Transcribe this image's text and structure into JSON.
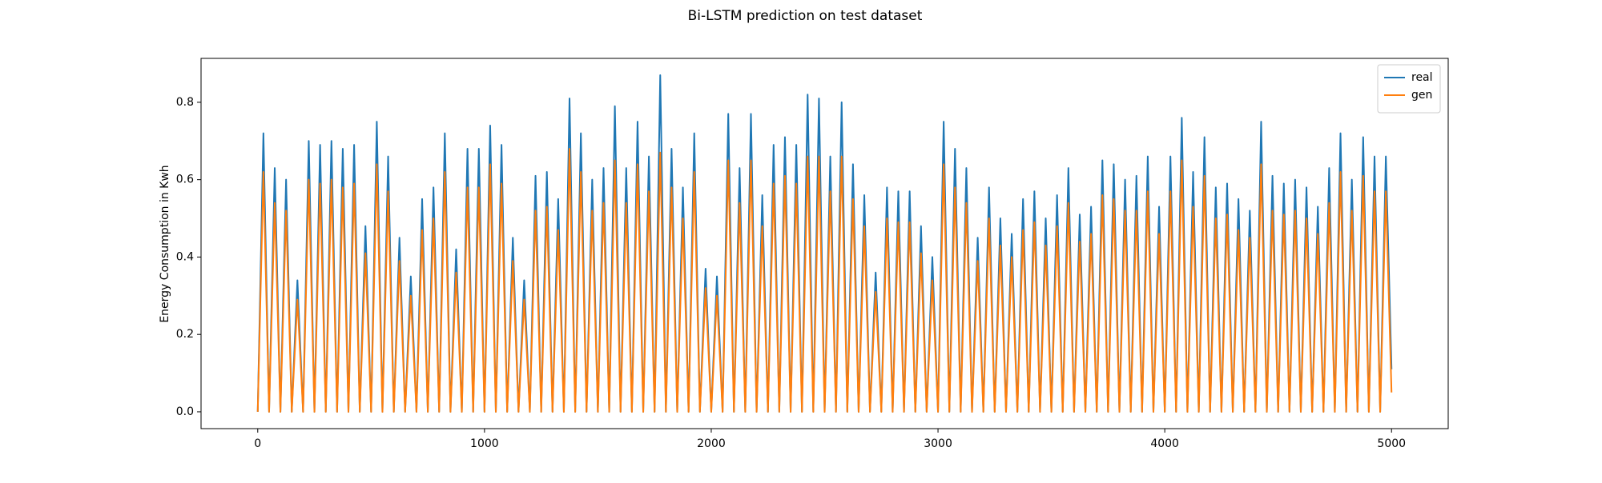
{
  "chart_data": {
    "type": "line",
    "title": "Bi-LSTM prediction on test dataset",
    "y_label": "Energy Consumption in Kwh",
    "x": [
      0,
      25,
      50,
      75,
      100,
      125,
      150,
      175,
      200,
      225,
      250,
      275,
      300,
      325,
      350,
      375,
      400,
      425,
      450,
      475,
      500,
      525,
      550,
      575,
      600,
      625,
      650,
      675,
      700,
      725,
      750,
      775,
      800,
      825,
      850,
      875,
      900,
      925,
      950,
      975,
      1000,
      1025,
      1050,
      1075,
      1100,
      1125,
      1150,
      1175,
      1200,
      1225,
      1250,
      1275,
      1300,
      1325,
      1350,
      1375,
      1400,
      1425,
      1450,
      1475,
      1500,
      1525,
      1550,
      1575,
      1600,
      1625,
      1650,
      1675,
      1700,
      1725,
      1750,
      1775,
      1800,
      1825,
      1850,
      1875,
      1900,
      1925,
      1950,
      1975,
      2000,
      2025,
      2050,
      2075,
      2100,
      2125,
      2150,
      2175,
      2200,
      2225,
      2250,
      2275,
      2300,
      2325,
      2350,
      2375,
      2400,
      2425,
      2450,
      2475,
      2500,
      2525,
      2550,
      2575,
      2600,
      2625,
      2650,
      2675,
      2700,
      2725,
      2750,
      2775,
      2800,
      2825,
      2850,
      2875,
      2900,
      2925,
      2950,
      2975,
      3000,
      3025,
      3050,
      3075,
      3100,
      3125,
      3150,
      3175,
      3200,
      3225,
      3250,
      3275,
      3300,
      3325,
      3350,
      3375,
      3400,
      3425,
      3450,
      3475,
      3500,
      3525,
      3550,
      3575,
      3600,
      3625,
      3650,
      3675,
      3700,
      3725,
      3750,
      3775,
      3800,
      3825,
      3850,
      3875,
      3900,
      3925,
      3950,
      3975,
      4000,
      4025,
      4050,
      4075,
      4100,
      4125,
      4150,
      4175,
      4200,
      4225,
      4250,
      4275,
      4300,
      4325,
      4350,
      4375,
      4400,
      4425,
      4450,
      4475,
      4500,
      4525,
      4550,
      4575,
      4600,
      4625,
      4650,
      4675,
      4700,
      4725,
      4750,
      4775,
      4800,
      4825,
      4850,
      4875,
      4900,
      4925,
      4950,
      4975,
      5000
    ],
    "series": [
      {
        "name": "real",
        "color": "#1f77b4",
        "values": [
          0,
          0.72,
          0,
          0.63,
          0,
          0.6,
          0,
          0.34,
          0,
          0.7,
          0,
          0.69,
          0,
          0.7,
          0,
          0.68,
          0,
          0.69,
          0,
          0.48,
          0,
          0.75,
          0,
          0.66,
          0,
          0.45,
          0,
          0.35,
          0,
          0.55,
          0,
          0.58,
          0,
          0.72,
          0,
          0.42,
          0,
          0.68,
          0,
          0.68,
          0,
          0.74,
          0,
          0.69,
          0,
          0.45,
          0,
          0.34,
          0,
          0.61,
          0,
          0.62,
          0,
          0.55,
          0,
          0.81,
          0,
          0.72,
          0,
          0.6,
          0,
          0.63,
          0,
          0.79,
          0,
          0.63,
          0,
          0.75,
          0,
          0.66,
          0,
          0.87,
          0,
          0.68,
          0,
          0.58,
          0,
          0.72,
          0,
          0.37,
          0,
          0.35,
          0,
          0.77,
          0,
          0.63,
          0,
          0.77,
          0,
          0.56,
          0,
          0.69,
          0,
          0.71,
          0,
          0.69,
          0,
          0.82,
          0,
          0.81,
          0,
          0.66,
          0,
          0.8,
          0,
          0.64,
          0,
          0.56,
          0,
          0.36,
          0,
          0.58,
          0,
          0.57,
          0,
          0.57,
          0,
          0.48,
          0,
          0.4,
          0,
          0.75,
          0,
          0.68,
          0,
          0.63,
          0,
          0.45,
          0,
          0.58,
          0,
          0.5,
          0,
          0.46,
          0,
          0.55,
          0,
          0.57,
          0,
          0.5,
          0,
          0.56,
          0,
          0.63,
          0,
          0.51,
          0,
          0.53,
          0,
          0.65,
          0,
          0.64,
          0,
          0.6,
          0,
          0.61,
          0,
          0.66,
          0,
          0.53,
          0,
          0.66,
          0,
          0.76,
          0,
          0.62,
          0,
          0.71,
          0,
          0.58,
          0,
          0.59,
          0,
          0.55,
          0,
          0.52,
          0,
          0.75,
          0,
          0.61,
          0,
          0.59,
          0,
          0.6,
          0,
          0.58,
          0,
          0.53,
          0,
          0.63,
          0,
          0.72,
          0,
          0.6,
          0,
          0.71,
          0,
          0.66,
          0,
          0.66,
          0.11
        ]
      },
      {
        "name": "gen",
        "color": "#ff7f0e",
        "values": [
          0,
          0.62,
          0,
          0.54,
          0,
          0.52,
          0,
          0.29,
          0,
          0.6,
          0,
          0.59,
          0,
          0.6,
          0,
          0.58,
          0,
          0.59,
          0,
          0.41,
          0,
          0.64,
          0,
          0.57,
          0,
          0.39,
          0,
          0.3,
          0,
          0.47,
          0,
          0.5,
          0,
          0.62,
          0,
          0.36,
          0,
          0.58,
          0,
          0.58,
          0,
          0.64,
          0,
          0.59,
          0,
          0.39,
          0,
          0.29,
          0,
          0.52,
          0,
          0.53,
          0,
          0.47,
          0,
          0.68,
          0,
          0.62,
          0,
          0.52,
          0,
          0.54,
          0,
          0.65,
          0,
          0.54,
          0,
          0.64,
          0,
          0.57,
          0,
          0.67,
          0,
          0.58,
          0,
          0.5,
          0,
          0.62,
          0,
          0.32,
          0,
          0.3,
          0,
          0.65,
          0,
          0.54,
          0,
          0.65,
          0,
          0.48,
          0,
          0.59,
          0,
          0.61,
          0,
          0.59,
          0,
          0.66,
          0,
          0.66,
          0,
          0.57,
          0,
          0.66,
          0,
          0.55,
          0,
          0.48,
          0,
          0.31,
          0,
          0.5,
          0,
          0.49,
          0,
          0.49,
          0,
          0.41,
          0,
          0.34,
          0,
          0.64,
          0,
          0.58,
          0,
          0.54,
          0,
          0.39,
          0,
          0.5,
          0,
          0.43,
          0,
          0.4,
          0,
          0.47,
          0,
          0.49,
          0,
          0.43,
          0,
          0.48,
          0,
          0.54,
          0,
          0.44,
          0,
          0.46,
          0,
          0.56,
          0,
          0.55,
          0,
          0.52,
          0,
          0.52,
          0,
          0.57,
          0,
          0.46,
          0,
          0.57,
          0,
          0.65,
          0,
          0.53,
          0,
          0.61,
          0,
          0.5,
          0,
          0.51,
          0,
          0.47,
          0,
          0.45,
          0,
          0.64,
          0,
          0.52,
          0,
          0.51,
          0,
          0.52,
          0,
          0.5,
          0,
          0.46,
          0,
          0.54,
          0,
          0.62,
          0,
          0.52,
          0,
          0.61,
          0,
          0.57,
          0,
          0.57,
          0.05
        ]
      }
    ],
    "xlim": [
      -250,
      5250
    ],
    "xticks": [
      0,
      1000,
      2000,
      3000,
      4000,
      5000
    ],
    "ylim": [
      -0.0435,
      0.9135
    ],
    "yticks": [
      {
        "value": 0,
        "label": "0.0"
      },
      0.2,
      0.4,
      0.6,
      0.8
    ],
    "legend": "upper right",
    "grid": false
  }
}
